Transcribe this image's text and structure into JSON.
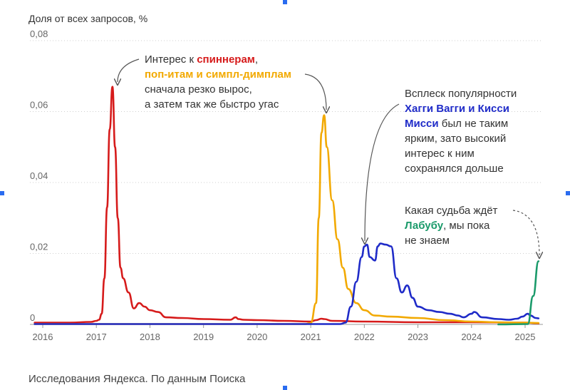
{
  "y_axis_label": "Доля от всех запросов, %",
  "source": "Исследования Яндекса. По данным Поиска",
  "annotations": {
    "fidget": {
      "prefix": "Интерес к ",
      "spinners": "спиннерам",
      "comma": ",",
      "popit": "поп-итам и симпл-димплам",
      "line3": "сначала резко вырос,",
      "line4": "а затем так же быстро угас"
    },
    "huggy": {
      "line1": "Всплеск популярности",
      "name1": "Хагги Вагги и Кисси",
      "name2": "Мисси",
      "tail2": " был не таким",
      "line4": "ярким, зато высокий",
      "line5": "интерес к ним",
      "line6": "сохранялся дольше"
    },
    "labubu": {
      "line1": "Какая судьба ждёт",
      "name": "Лабубу",
      "tail": ", мы пока",
      "line3": "не знаем"
    }
  },
  "colors": {
    "spinners": "#d61b1b",
    "popit": "#f2a900",
    "huggy": "#1f2bc8",
    "labubu": "#1a9a6a"
  },
  "chart_data": {
    "type": "line",
    "ylabel": "Доля от всех запросов, %",
    "ylim": [
      0,
      0.08
    ],
    "xlim": [
      2015.85,
      2025.4
    ],
    "y_ticks": [
      {
        "v": 0,
        "label": "0"
      },
      {
        "v": 0.02,
        "label": "0,02"
      },
      {
        "v": 0.04,
        "label": "0,04"
      },
      {
        "v": 0.06,
        "label": "0,06"
      },
      {
        "v": 0.08,
        "label": "0,08"
      }
    ],
    "x_ticks": [
      {
        "v": 2016,
        "label": "2016"
      },
      {
        "v": 2017,
        "label": "2017"
      },
      {
        "v": 2018,
        "label": "2018"
      },
      {
        "v": 2019,
        "label": "2019"
      },
      {
        "v": 2020,
        "label": "2020"
      },
      {
        "v": 2021,
        "label": "2021"
      },
      {
        "v": 2022,
        "label": "2022"
      },
      {
        "v": 2023,
        "label": "2023"
      },
      {
        "v": 2024,
        "label": "2024"
      },
      {
        "v": 2025,
        "label": "2025"
      }
    ],
    "grid": "horizontal dotted",
    "series": [
      {
        "name": "спиннерам",
        "color": "#d61b1b",
        "x": [
          2015.85,
          2016.5,
          2016.9,
          2017.0,
          2017.05,
          2017.1,
          2017.15,
          2017.2,
          2017.25,
          2017.3,
          2017.35,
          2017.4,
          2017.45,
          2017.5,
          2017.6,
          2017.7,
          2017.8,
          2017.9,
          2018.0,
          2018.15,
          2018.3,
          2018.6,
          2019.0,
          2019.5,
          2019.6,
          2019.65,
          2019.75,
          2020.0,
          2020.5,
          2021.0,
          2021.1,
          2021.2,
          2021.25,
          2021.4,
          2022.0,
          2023.0,
          2024.0,
          2025.0,
          2025.25
        ],
        "y": [
          0.0005,
          0.0005,
          0.0007,
          0.001,
          0.0013,
          0.003,
          0.013,
          0.033,
          0.055,
          0.067,
          0.05,
          0.03,
          0.016,
          0.013,
          0.009,
          0.0045,
          0.006,
          0.005,
          0.004,
          0.0035,
          0.002,
          0.0018,
          0.0015,
          0.0013,
          0.002,
          0.0015,
          0.0013,
          0.0012,
          0.001,
          0.0008,
          0.0012,
          0.0016,
          0.0015,
          0.001,
          0.0008,
          0.0006,
          0.0006,
          0.0005,
          0.0003
        ]
      },
      {
        "name": "поп-итам и симпл-димплам",
        "color": "#f2a900",
        "x": [
          2015.85,
          2020.9,
          2021.0,
          2021.1,
          2021.15,
          2021.2,
          2021.25,
          2021.3,
          2021.4,
          2021.5,
          2021.6,
          2021.7,
          2021.85,
          2022.0,
          2022.2,
          2022.5,
          2023.0,
          2023.5,
          2024.0,
          2024.5,
          2025.0,
          2025.25
        ],
        "y": [
          0.0001,
          0.0001,
          0.0004,
          0.006,
          0.03,
          0.054,
          0.059,
          0.05,
          0.035,
          0.024,
          0.016,
          0.01,
          0.006,
          0.004,
          0.0025,
          0.0022,
          0.0018,
          0.0012,
          0.0008,
          0.0006,
          0.0005,
          0.0004
        ]
      },
      {
        "name": "Хагги Вагги и Кисси Мисси",
        "color": "#1f2bc8",
        "x": [
          2015.85,
          2021.55,
          2021.65,
          2021.75,
          2021.85,
          2021.95,
          2022.0,
          2022.05,
          2022.1,
          2022.2,
          2022.25,
          2022.3,
          2022.4,
          2022.5,
          2022.6,
          2022.7,
          2022.8,
          2022.9,
          2023.0,
          2023.2,
          2023.4,
          2023.6,
          2023.75,
          2023.85,
          2024.0,
          2024.05,
          2024.2,
          2024.5,
          2024.7,
          2024.85,
          2024.95,
          2025.05,
          2025.1,
          2025.2,
          2025.25
        ],
        "y": [
          0.0001,
          0.0001,
          0.0005,
          0.005,
          0.012,
          0.019,
          0.022,
          0.0225,
          0.019,
          0.018,
          0.022,
          0.0228,
          0.0225,
          0.022,
          0.013,
          0.009,
          0.011,
          0.0075,
          0.005,
          0.004,
          0.0035,
          0.003,
          0.0025,
          0.002,
          0.003,
          0.0035,
          0.002,
          0.0015,
          0.0013,
          0.0016,
          0.0022,
          0.003,
          0.0025,
          0.0018,
          0.0017
        ]
      },
      {
        "name": "Лабубу",
        "color": "#1a9a6a",
        "x": [
          2024.5,
          2025.05,
          2025.15,
          2025.25
        ],
        "y": [
          0.0,
          0.0001,
          0.008,
          0.0178
        ]
      }
    ]
  }
}
